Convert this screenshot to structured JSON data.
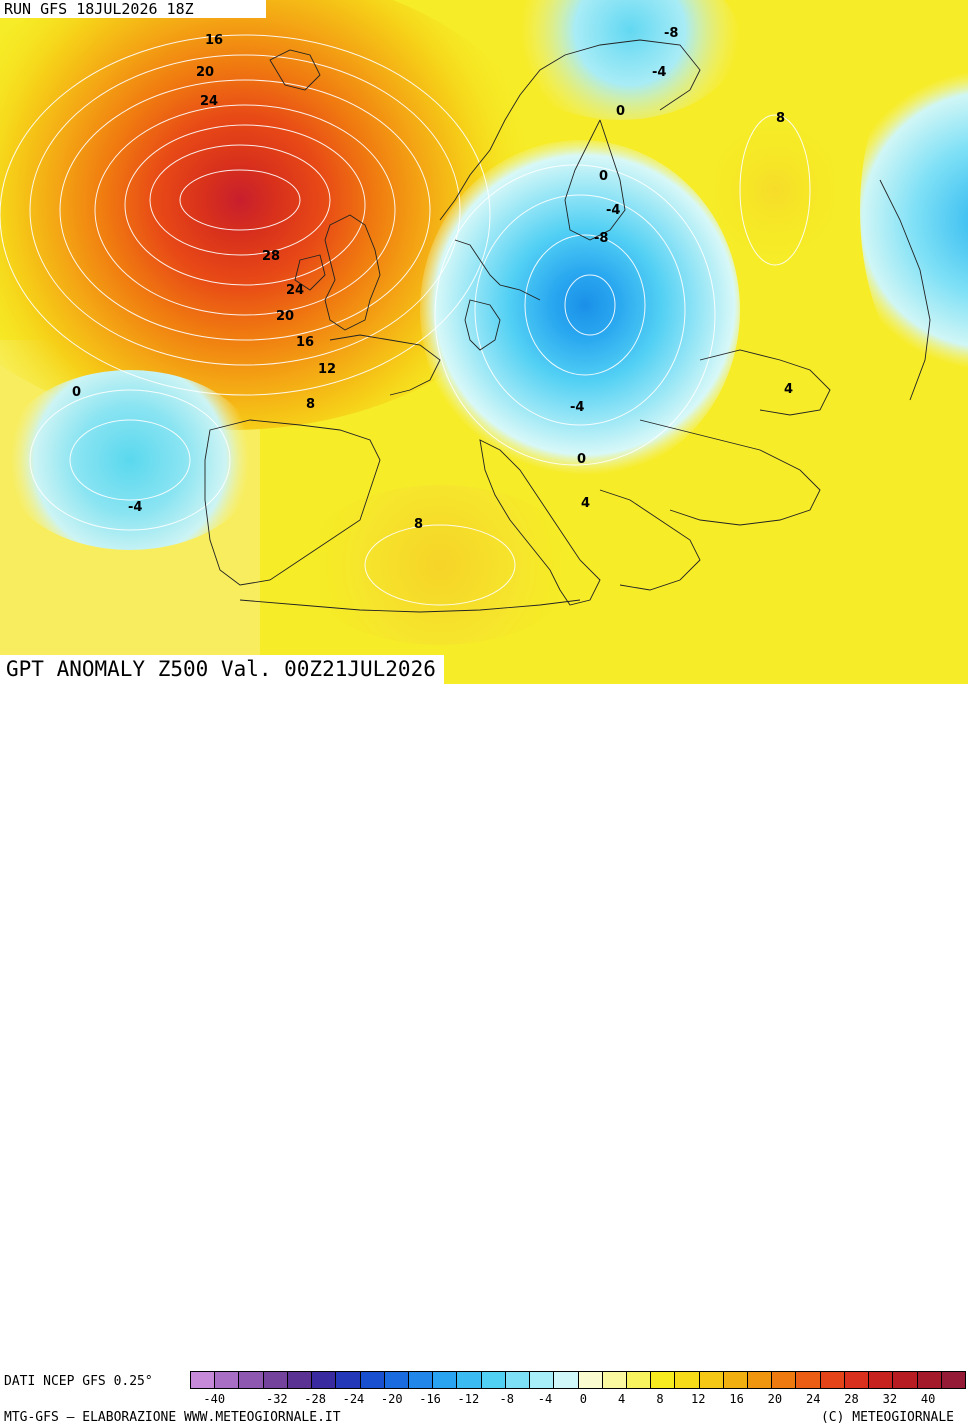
{
  "run_label": "RUN GFS 18JUL2026 18Z",
  "map_title": "GPT ANOMALY Z500 Val. 00Z21JUL2026",
  "source": "DATI NCEP GFS 0.25°",
  "credits_left": "MTG-GFS — ELABORAZIONE WWW.METEOGIORNALE.IT",
  "credits_right": "(C) METEOGIORNALE",
  "contour_labels": [
    "16",
    "20",
    "24",
    "28",
    "24",
    "20",
    "16",
    "12",
    "8",
    "0",
    "-4",
    "8",
    "-8",
    "-4",
    "0",
    "0",
    "-4",
    "-8",
    "8",
    "-4",
    "0",
    "4",
    "4"
  ],
  "colorbar": {
    "colors": [
      "#c78ad8",
      "#a86fc4",
      "#8e58b0",
      "#74449c",
      "#5a3294",
      "#3a2aa0",
      "#2238b8",
      "#1850d0",
      "#1a6be0",
      "#2188ea",
      "#2aa3f0",
      "#3abcf2",
      "#52d0f4",
      "#7ee0f6",
      "#a8eef8",
      "#d0f8fa",
      "#fbfbd0",
      "#fbf9a0",
      "#f8f460",
      "#f6ec20",
      "#f6dc18",
      "#f4c814",
      "#f2b010",
      "#f0960e",
      "#ee7a10",
      "#ec5e14",
      "#e44418",
      "#d8301c",
      "#c8221e",
      "#b61c22",
      "#a41a2a",
      "#941a36"
    ],
    "tick_labels": [
      "-40",
      "-32",
      "-28",
      "-24",
      "-20",
      "-16",
      "-12",
      "-8",
      "-4",
      "0",
      "4",
      "8",
      "12",
      "16",
      "20",
      "24",
      "28",
      "32",
      "40"
    ]
  }
}
